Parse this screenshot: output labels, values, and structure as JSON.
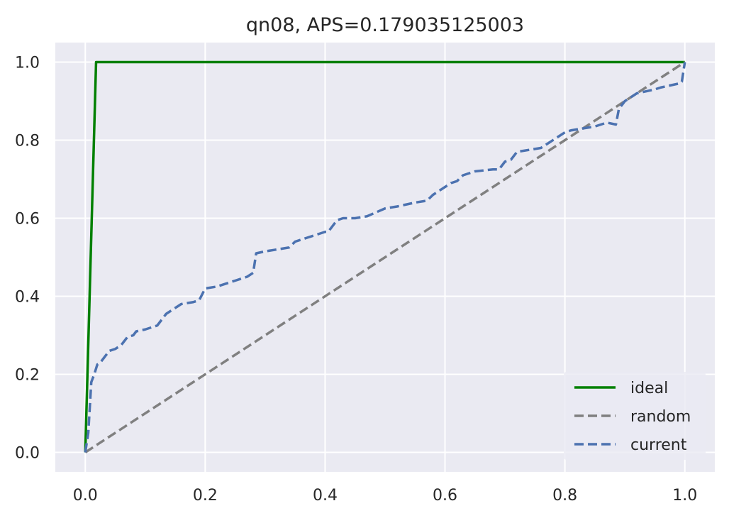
{
  "chart_data": {
    "type": "line",
    "title": "qn08, APS=0.179035125003",
    "xlabel": "",
    "ylabel": "",
    "xlim": [
      -0.05,
      1.05
    ],
    "ylim": [
      -0.05,
      1.05
    ],
    "xticks": [
      0.0,
      0.2,
      0.4,
      0.6,
      0.8,
      1.0
    ],
    "yticks": [
      0.0,
      0.2,
      0.4,
      0.6,
      0.8,
      1.0
    ],
    "xtick_labels": [
      "0.0",
      "0.2",
      "0.4",
      "0.6",
      "0.8",
      "1.0"
    ],
    "ytick_labels": [
      "0.0",
      "0.2",
      "0.4",
      "0.6",
      "0.8",
      "1.0"
    ],
    "grid": true,
    "legend_position": "lower-right",
    "background_color": "#eaeaf2",
    "series": [
      {
        "name": "ideal",
        "color": "#008000",
        "style": "solid",
        "x": [
          0.0,
          0.018,
          1.0
        ],
        "y": [
          0.0,
          1.0,
          1.0
        ]
      },
      {
        "name": "random",
        "color": "#808080",
        "style": "dashed",
        "x": [
          0.0,
          1.0
        ],
        "y": [
          0.0,
          1.0
        ]
      },
      {
        "name": "current",
        "color": "#4c72b0",
        "style": "dashed",
        "x": [
          0.0,
          0.005,
          0.01,
          0.015,
          0.02,
          0.025,
          0.03,
          0.04,
          0.05,
          0.06,
          0.065,
          0.07,
          0.08,
          0.085,
          0.1,
          0.11,
          0.12,
          0.125,
          0.135,
          0.15,
          0.16,
          0.18,
          0.19,
          0.2,
          0.22,
          0.24,
          0.25,
          0.27,
          0.28,
          0.285,
          0.3,
          0.32,
          0.34,
          0.35,
          0.37,
          0.39,
          0.4,
          0.405,
          0.42,
          0.43,
          0.45,
          0.47,
          0.5,
          0.52,
          0.55,
          0.57,
          0.58,
          0.6,
          0.61,
          0.62,
          0.63,
          0.65,
          0.68,
          0.69,
          0.7,
          0.71,
          0.72,
          0.76,
          0.765,
          0.77,
          0.79,
          0.8,
          0.81,
          0.85,
          0.86,
          0.87,
          0.885,
          0.89,
          0.895,
          0.9,
          0.92,
          0.95,
          0.96,
          0.99,
          0.995,
          1.0
        ],
        "y": [
          0.0,
          0.05,
          0.18,
          0.2,
          0.225,
          0.23,
          0.24,
          0.26,
          0.265,
          0.275,
          0.285,
          0.295,
          0.3,
          0.31,
          0.315,
          0.32,
          0.325,
          0.335,
          0.355,
          0.37,
          0.38,
          0.385,
          0.39,
          0.42,
          0.425,
          0.435,
          0.44,
          0.45,
          0.46,
          0.51,
          0.515,
          0.52,
          0.525,
          0.54,
          0.55,
          0.56,
          0.565,
          0.565,
          0.595,
          0.6,
          0.6,
          0.605,
          0.625,
          0.63,
          0.64,
          0.645,
          0.66,
          0.68,
          0.69,
          0.695,
          0.71,
          0.72,
          0.725,
          0.725,
          0.745,
          0.75,
          0.77,
          0.78,
          0.785,
          0.79,
          0.81,
          0.82,
          0.825,
          0.835,
          0.84,
          0.845,
          0.84,
          0.88,
          0.89,
          0.9,
          0.92,
          0.93,
          0.935,
          0.945,
          0.95,
          1.0
        ]
      }
    ]
  }
}
